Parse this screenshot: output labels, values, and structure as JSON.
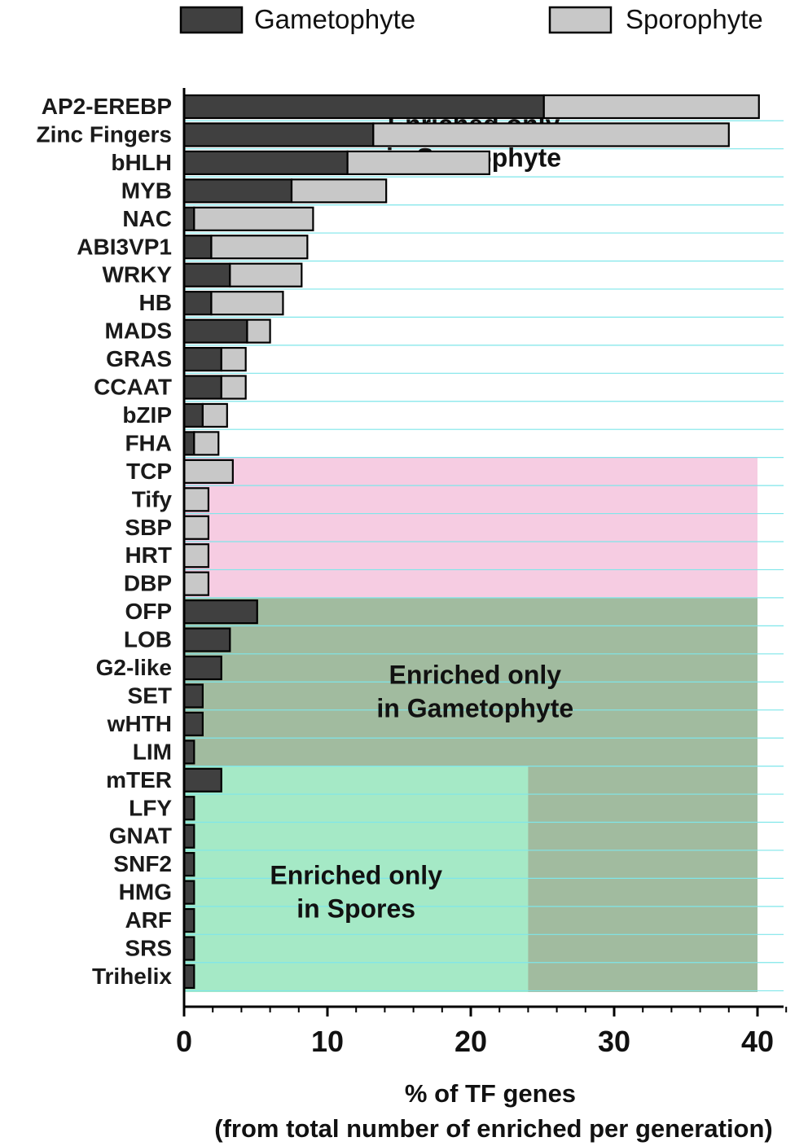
{
  "chart_data": {
    "type": "bar",
    "orientation": "horizontal",
    "stacked": true,
    "categories": [
      "AP2-EREBP",
      "Zinc Fingers",
      "bHLH",
      "MYB",
      "NAC",
      "ABI3VP1",
      "WRKY",
      "HB",
      "MADS",
      "GRAS",
      "CCAAT",
      "bZIP",
      "FHA",
      "TCP",
      "Tify",
      "SBP",
      "HRT",
      "DBP",
      "OFP",
      "LOB",
      "G2-like",
      "SET",
      "wHTH",
      "LIM",
      "mTER",
      "LFY",
      "GNAT",
      "SNF2",
      "HMG",
      "ARF",
      "SRS",
      "Trihelix"
    ],
    "series": [
      {
        "name": "Gametophyte",
        "color": "#404040",
        "values": [
          25.1,
          13.2,
          11.4,
          7.5,
          0.7,
          1.9,
          3.2,
          1.9,
          4.4,
          2.6,
          2.6,
          1.3,
          0.7,
          0,
          0,
          0,
          0,
          0,
          5.1,
          3.2,
          2.6,
          1.3,
          1.3,
          0.7,
          2.6,
          0.7,
          0.7,
          0.7,
          0.7,
          0.7,
          0.7,
          0.7
        ]
      },
      {
        "name": "Sporophyte",
        "color": "#c8c8c8",
        "values": [
          15.0,
          24.8,
          9.9,
          6.6,
          8.3,
          6.7,
          5.0,
          5.0,
          1.6,
          1.7,
          1.7,
          1.7,
          1.7,
          3.4,
          1.7,
          1.7,
          1.7,
          1.7,
          0,
          0,
          0,
          0,
          0,
          0,
          0,
          0,
          0,
          0,
          0,
          0,
          0,
          0
        ]
      }
    ],
    "xlim": [
      0,
      42
    ],
    "xticks": [
      0,
      10,
      20,
      30,
      40
    ],
    "xlabel": "% of TF genes",
    "xlabel_sub": "(from total number of enriched per generation)",
    "legend_position": "top",
    "regions": [
      {
        "label_line1": "Enriched only",
        "label_line2": "in Sporophyte",
        "color": "#f6cce2",
        "categories": [
          "TCP",
          "DBP"
        ],
        "x_range": [
          0,
          40
        ]
      },
      {
        "label_line1": "Enriched only",
        "label_line2": "in Gametophyte",
        "color": "#a1bb9f",
        "categories": [
          "OFP",
          "Trihelix"
        ],
        "x_range": [
          0,
          40
        ]
      },
      {
        "label_line1": "Enriched only",
        "label_line2": "in Spores",
        "color": "#a5e9c6",
        "categories": [
          "mTER",
          "Trihelix"
        ],
        "x_range": [
          0,
          24
        ]
      }
    ]
  }
}
